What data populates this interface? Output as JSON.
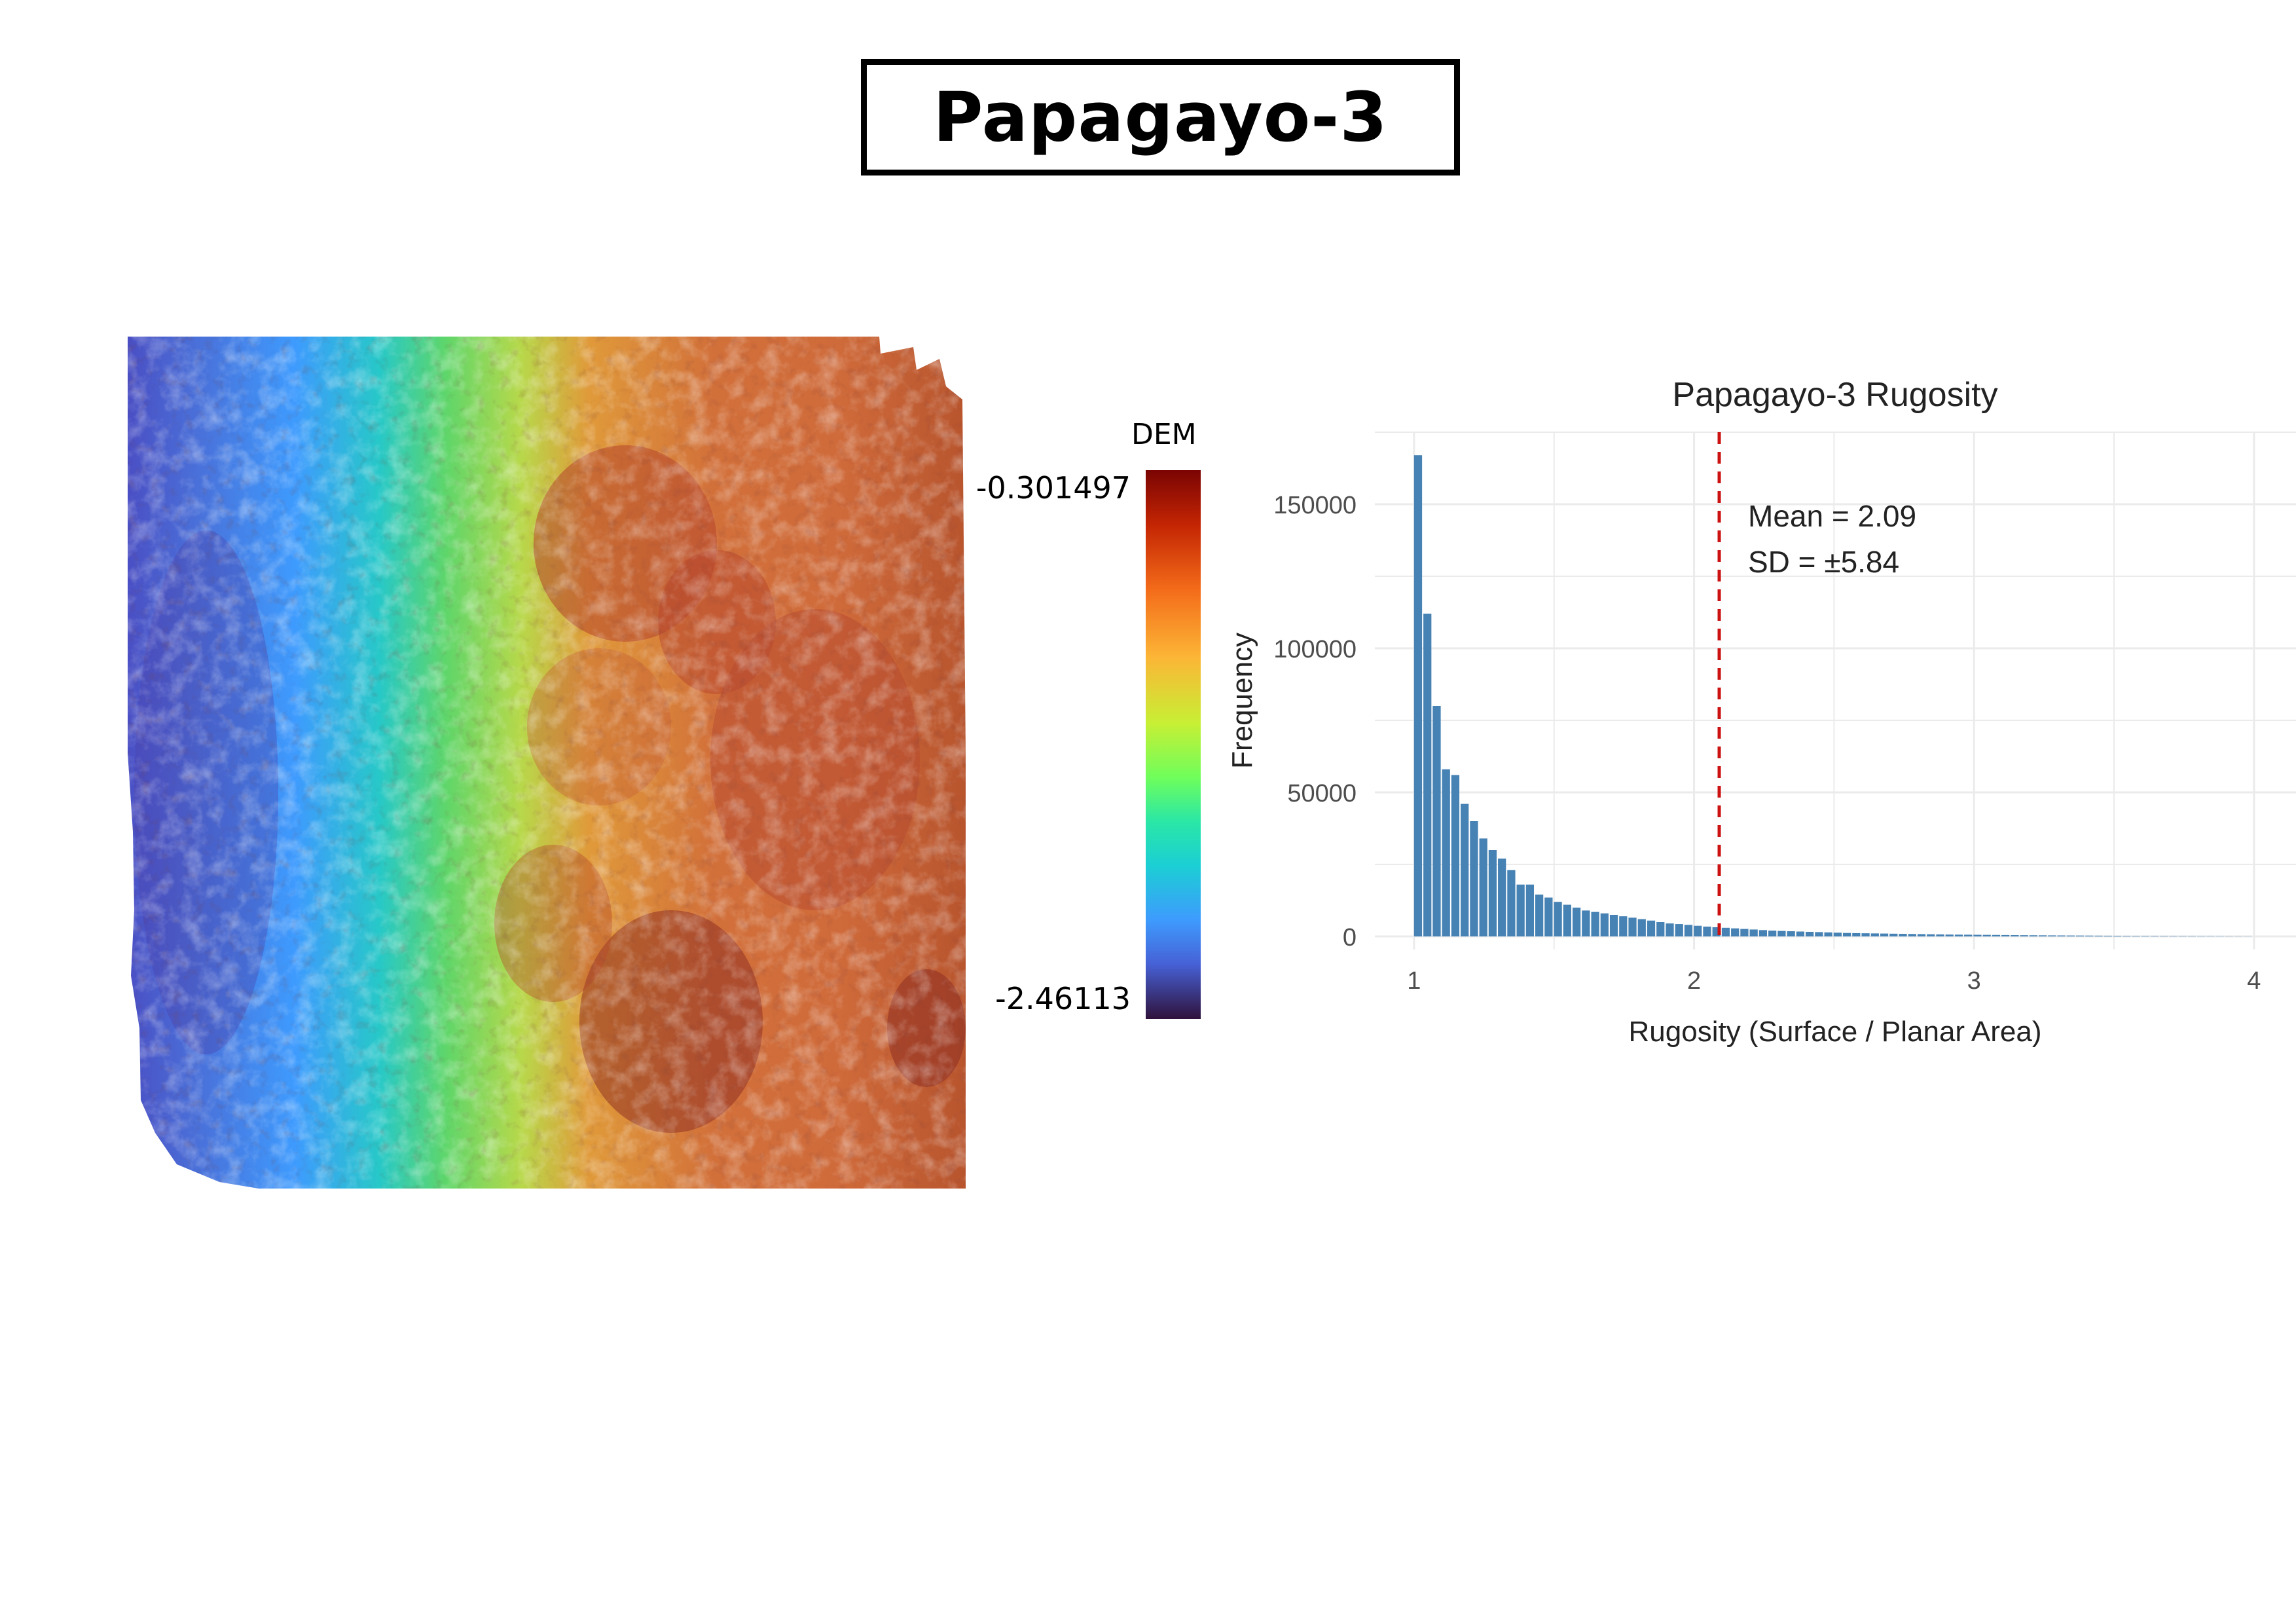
{
  "page_title": "Papagayo-3",
  "dem_legend": {
    "title": "DEM",
    "max_label": "-0.301497",
    "min_label": "-2.46113",
    "colormap": [
      "#30123b",
      "#4661d6",
      "#3e9bfe",
      "#1bcfd4",
      "#2ae7a6",
      "#6ffe5b",
      "#c8ef34",
      "#fcb536",
      "#f46d1a",
      "#c42503",
      "#7a0403"
    ]
  },
  "chart_data": {
    "type": "bar",
    "title": "Papagayo-3 Rugosity",
    "xlabel": "Rugosity (Surface / Planar Area)",
    "ylabel": "Frequency",
    "xlim": [
      0.86,
      4.15
    ],
    "ylim": [
      0,
      175000
    ],
    "x_ticks": [
      "1",
      "2",
      "3",
      "4"
    ],
    "y_ticks": [
      "0",
      "50000",
      "100000",
      "150000"
    ],
    "bin_start": 1.0,
    "bin_width": 0.0333,
    "bar_color": "#4682b4",
    "values": [
      167000,
      112000,
      80000,
      58000,
      56000,
      46000,
      40000,
      34000,
      30000,
      27000,
      23000,
      18000,
      18000,
      14500,
      13500,
      12000,
      11000,
      10000,
      9000,
      8500,
      8000,
      7500,
      7000,
      6500,
      6000,
      5500,
      5000,
      4500,
      4300,
      4000,
      3700,
      3400,
      3200,
      3000,
      2800,
      2600,
      2400,
      2200,
      2000,
      1900,
      1800,
      1700,
      1600,
      1500,
      1400,
      1300,
      1200,
      1150,
      1100,
      1050,
      1000,
      950,
      900,
      850,
      800,
      750,
      700,
      650,
      620,
      600,
      570,
      540,
      510,
      480,
      450,
      420,
      400,
      380,
      360,
      340,
      320,
      300,
      280,
      260,
      240,
      220,
      200,
      190,
      180,
      170,
      160,
      150,
      140,
      130,
      120,
      110,
      100,
      90,
      80,
      70
    ],
    "mean_line": {
      "x": 2.09,
      "color": "#cc1111"
    },
    "annotations": [
      "Mean = 2.09",
      "SD = ±5.84"
    ]
  }
}
